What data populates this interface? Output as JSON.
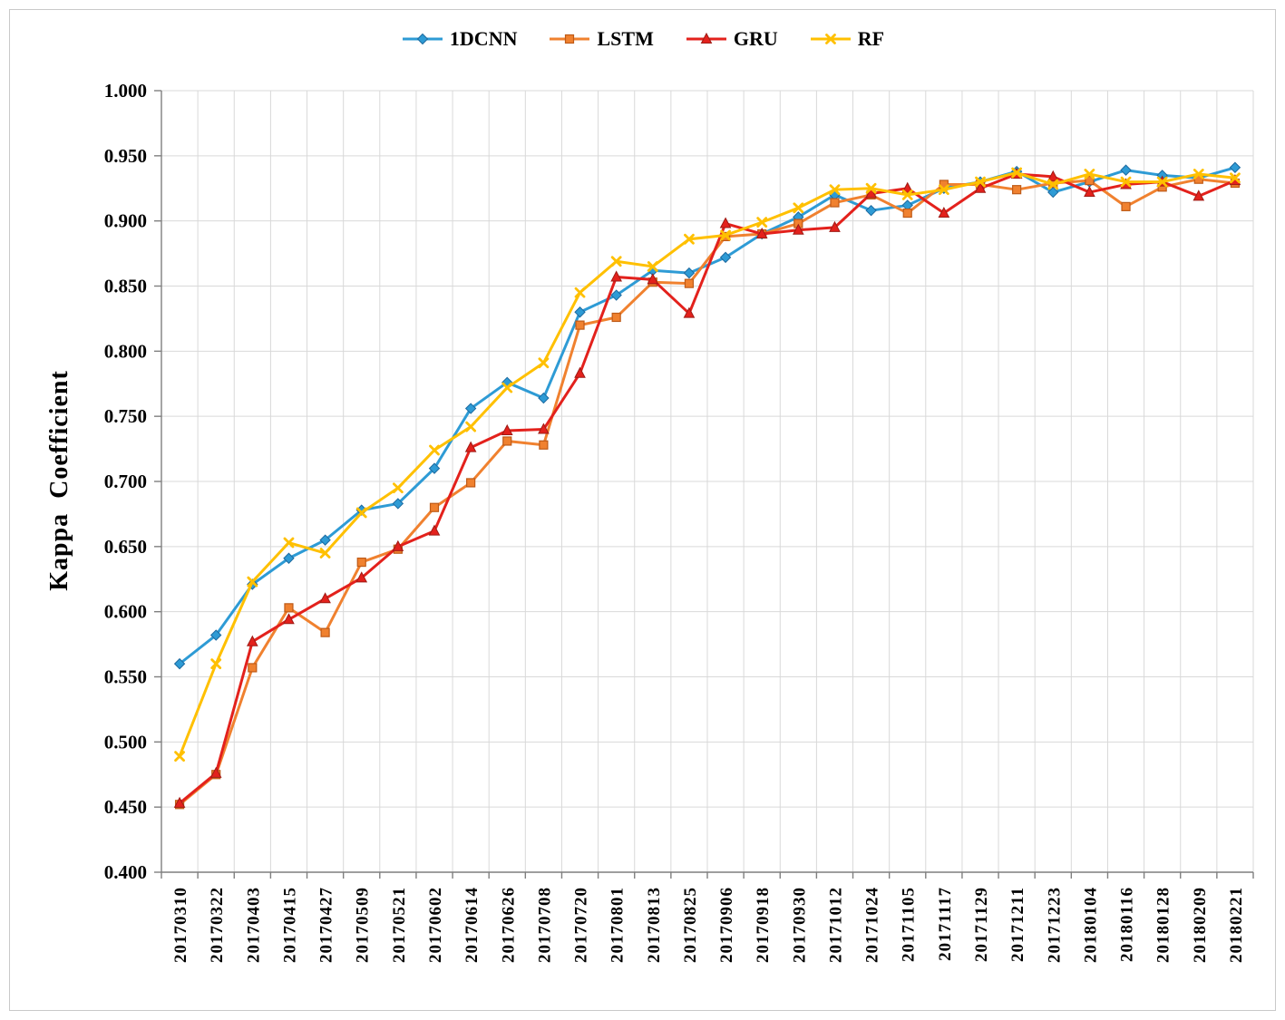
{
  "chart_data": {
    "type": "line",
    "title": "",
    "xlabel": "",
    "ylabel": "Kappa  Coefficient",
    "ylim": [
      0.4,
      1.0
    ],
    "ytick_step": 0.05,
    "ytick_format_decimals": 3,
    "grid": true,
    "legend_position": "top-center",
    "categories": [
      "20170310",
      "20170322",
      "20170403",
      "20170415",
      "20170427",
      "20170509",
      "20170521",
      "20170602",
      "20170614",
      "20170626",
      "20170708",
      "20170720",
      "20170801",
      "20170813",
      "20170825",
      "20170906",
      "20170918",
      "20170930",
      "20171012",
      "20171024",
      "20171105",
      "20171117",
      "20171129",
      "20171211",
      "20171223",
      "20180104",
      "20180116",
      "20180128",
      "20180209",
      "20180221"
    ],
    "series": [
      {
        "name": "1DCNN",
        "color": "#2E9BD5",
        "edge": "#1C699F",
        "marker": "diamond",
        "values": [
          0.56,
          0.582,
          0.621,
          0.641,
          0.655,
          0.678,
          0.683,
          0.71,
          0.756,
          0.776,
          0.764,
          0.83,
          0.843,
          0.862,
          0.86,
          0.872,
          0.89,
          0.903,
          0.92,
          0.908,
          0.912,
          0.925,
          0.93,
          0.938,
          0.922,
          0.93,
          0.939,
          0.935,
          0.933,
          0.941
        ]
      },
      {
        "name": "LSTM",
        "color": "#F0812F",
        "edge": "#BE5A17",
        "marker": "square",
        "values": [
          0.452,
          0.475,
          0.557,
          0.603,
          0.584,
          0.638,
          0.648,
          0.68,
          0.699,
          0.731,
          0.728,
          0.82,
          0.826,
          0.853,
          0.852,
          0.888,
          0.89,
          0.898,
          0.914,
          0.92,
          0.906,
          0.928,
          0.928,
          0.924,
          0.929,
          0.931,
          0.911,
          0.926,
          0.932,
          0.929
        ]
      },
      {
        "name": "GRU",
        "color": "#E3211C",
        "edge": "#9E1B15",
        "marker": "triangle",
        "values": [
          0.453,
          0.476,
          0.577,
          0.594,
          0.61,
          0.626,
          0.65,
          0.662,
          0.726,
          0.739,
          0.74,
          0.783,
          0.857,
          0.855,
          0.829,
          0.898,
          0.89,
          0.893,
          0.895,
          0.921,
          0.925,
          0.906,
          0.925,
          0.936,
          0.934,
          0.922,
          0.928,
          0.93,
          0.919,
          0.931
        ]
      },
      {
        "name": "RF",
        "color": "#FFC000",
        "edge": "#BF9000",
        "marker": "x",
        "values": [
          0.489,
          0.56,
          0.623,
          0.653,
          0.645,
          0.676,
          0.695,
          0.724,
          0.742,
          0.772,
          0.791,
          0.845,
          0.869,
          0.865,
          0.886,
          0.889,
          0.899,
          0.91,
          0.924,
          0.925,
          0.92,
          0.924,
          0.93,
          0.937,
          0.928,
          0.936,
          0.93,
          0.93,
          0.936,
          0.933
        ]
      }
    ]
  },
  "colors": {
    "background": "#ffffff",
    "frame_border": "#c9c9c9",
    "grid": "#d9d9d9",
    "axis": "#7f7f7f",
    "text": "#000000"
  }
}
